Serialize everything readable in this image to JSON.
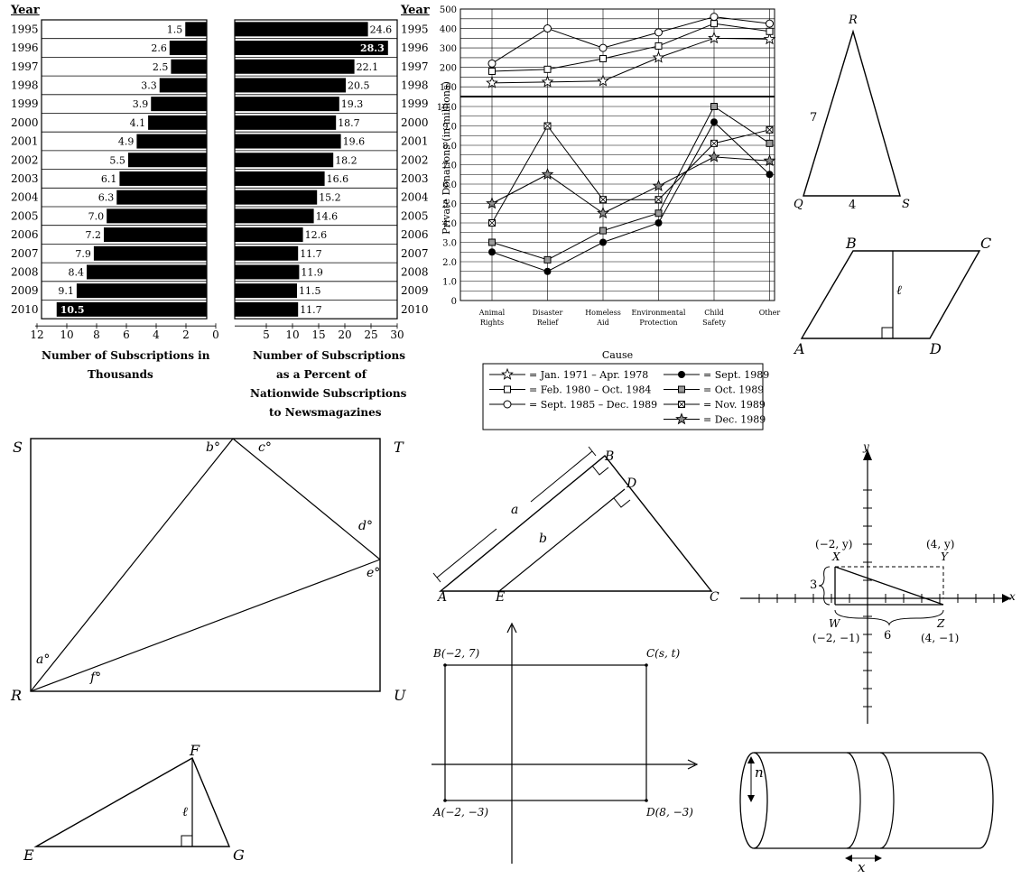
{
  "bar_panel": {
    "year_header_left": "Year",
    "year_header_right": "Year",
    "left_title_l1": "Number of Subscriptions in",
    "left_title_l2": "Thousands",
    "right_title_l1": "Number of Subscriptions",
    "right_title_l2": "as a Percent of",
    "right_title_l3": "Nationwide Subscriptions",
    "right_title_l4": "to Newsmagazines",
    "left_ticks": [
      "12",
      "10",
      "8",
      "6",
      "4",
      "2",
      "0"
    ],
    "right_ticks": [
      "5",
      "10",
      "15",
      "20",
      "25",
      "30"
    ]
  },
  "line_panel": {
    "ylabel": "Private Donations (in millions)",
    "xlabel": "Cause",
    "upper_ticks": [
      "500",
      "400",
      "300",
      "200",
      "100"
    ],
    "lower_ticks": [
      "10.0",
      "9.0",
      "8.0",
      "7.0",
      "6.0",
      "5.0",
      "4.0",
      "3.0",
      "2.0",
      "1.0",
      "0"
    ],
    "cats": [
      [
        "Animal",
        "Rights"
      ],
      [
        "Disaster",
        "Relief"
      ],
      [
        "Homeless",
        "Aid"
      ],
      [
        "Environmental",
        "Protection"
      ],
      [
        "Child",
        "Safety"
      ],
      [
        "Other",
        ""
      ]
    ],
    "legend": [
      "= Jan. 1971 – Apr. 1978",
      "= Feb. 1980 – Oct. 1984",
      "= Sept. 1985 – Dec. 1989",
      "= Sept. 1989",
      "= Oct. 1989",
      "= Nov. 1989",
      "= Dec. 1989"
    ]
  },
  "chart_data": [
    {
      "type": "bar",
      "title": "",
      "xlabel": "Number of Subscriptions in Thousands",
      "categories": [
        "1995",
        "1996",
        "1997",
        "1998",
        "1999",
        "2000",
        "2001",
        "2002",
        "2003",
        "2004",
        "2005",
        "2006",
        "2007",
        "2008",
        "2009",
        "2010"
      ],
      "series": [
        {
          "name": "Number of Subscriptions in Thousands",
          "values": [
            1.5,
            2.6,
            2.5,
            3.3,
            3.9,
            4.1,
            4.9,
            5.5,
            6.1,
            6.3,
            7.0,
            7.2,
            7.9,
            8.4,
            9.1,
            10.5
          ]
        }
      ],
      "xlim": [
        0,
        12
      ]
    },
    {
      "type": "bar",
      "title": "",
      "xlabel": "Number of Subscriptions as a Percent of Nationwide Subscriptions to Newsmagazines",
      "categories": [
        "1995",
        "1996",
        "1997",
        "1998",
        "1999",
        "2000",
        "2001",
        "2002",
        "2003",
        "2004",
        "2005",
        "2006",
        "2007",
        "2008",
        "2009",
        "2010"
      ],
      "series": [
        {
          "name": "Number of Subscriptions as a Percent of Nationwide Subscriptions to Newsmagazines",
          "values": [
            24.6,
            28.3,
            22.1,
            20.5,
            19.3,
            18.7,
            19.6,
            18.2,
            16.6,
            15.2,
            14.6,
            12.6,
            11.7,
            11.9,
            11.5,
            11.7
          ]
        }
      ],
      "xlim": [
        0,
        30
      ]
    },
    {
      "type": "line",
      "title": "",
      "xlabel": "Cause",
      "ylabel": "Private Donations (in millions)",
      "categories": [
        "Animal Rights",
        "Disaster Relief",
        "Homeless Aid",
        "Environmental Protection",
        "Child Safety",
        "Other"
      ],
      "ylim_upper": [
        0,
        500
      ],
      "ylim_lower": [
        0,
        10.0
      ],
      "series": [
        {
          "name": "Jan. 1971 – Apr. 1978",
          "panel": "upper",
          "marker": "star-open",
          "values": [
            120,
            125,
            130,
            250,
            350,
            345
          ]
        },
        {
          "name": "Feb. 1980 – Oct. 1984",
          "panel": "upper",
          "marker": "square-open",
          "values": [
            180,
            190,
            245,
            310,
            425,
            385
          ]
        },
        {
          "name": "Sept. 1985 – Dec. 1989",
          "panel": "upper",
          "marker": "circle-open",
          "values": [
            220,
            400,
            300,
            380,
            460,
            425
          ]
        },
        {
          "name": "Sept. 1989",
          "panel": "lower",
          "marker": "circle-filled",
          "values": [
            2.5,
            1.5,
            3.0,
            4.0,
            9.2,
            6.5
          ]
        },
        {
          "name": "Oct. 1989",
          "panel": "lower",
          "marker": "square-gray",
          "values": [
            3.0,
            2.1,
            3.6,
            4.5,
            10.0,
            8.1
          ]
        },
        {
          "name": "Nov. 1989",
          "panel": "lower",
          "marker": "square-x",
          "values": [
            4.0,
            9.0,
            5.2,
            5.2,
            8.1,
            8.8
          ]
        },
        {
          "name": "Dec. 1989",
          "panel": "lower",
          "marker": "star-gray",
          "values": [
            5.0,
            6.5,
            4.5,
            5.9,
            7.4,
            7.2
          ]
        }
      ]
    }
  ],
  "fig_triangle_qrs": {
    "R": "R",
    "Q": "Q",
    "S": "S",
    "side": "7",
    "base": "4"
  },
  "fig_parallelogram": {
    "A": "A",
    "B": "B",
    "C": "C",
    "D": "D",
    "h": "ℓ"
  },
  "fig_rectangle_stru": {
    "S": "S",
    "T": "T",
    "R": "R",
    "U": "U",
    "a": "a°",
    "b": "b°",
    "c": "c°",
    "d": "d°",
    "e": "e°",
    "f": "f°"
  },
  "fig_similar_triangles": {
    "A": "A",
    "B": "B",
    "C": "C",
    "D": "D",
    "E": "E",
    "a": "a",
    "b": "b"
  },
  "fig_coordinate_xywz": {
    "x": "x",
    "y": "y",
    "X": "X",
    "Y": "Y",
    "W": "W",
    "Z": "Z",
    "pX": "(−2, y)",
    "pY": "(4, y)",
    "pW": "(−2, −1)",
    "pZ": "(4, −1)",
    "three": "3",
    "six": "6"
  },
  "fig_coordinate_rect": {
    "B": "B(−2, 7)",
    "C": "C(s, t)",
    "A": "A(−2, −3)",
    "D": "D(8, −3)"
  },
  "fig_triangle_efg": {
    "E": "E",
    "F": "F",
    "G": "G",
    "h": "ℓ"
  },
  "fig_cylinder": {
    "n": "n",
    "x": "x"
  }
}
